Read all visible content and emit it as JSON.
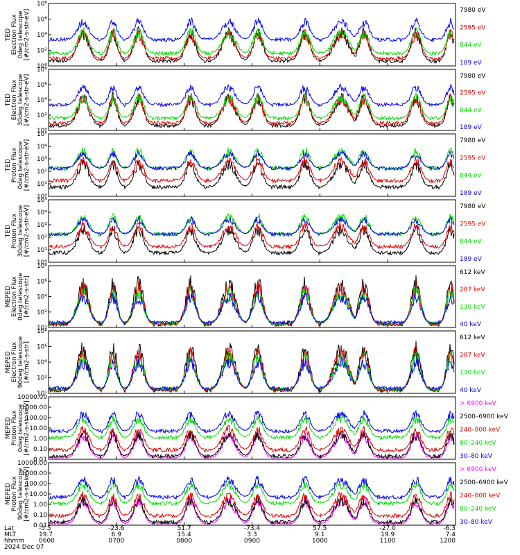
{
  "series_colors": {
    "black": "#000000",
    "red": "#e00000",
    "green": "#00dd00",
    "blue": "#0000ee",
    "magenta": "#ff00ff"
  },
  "bottom_axis": {
    "row_labels": [
      "Lat",
      "MLT",
      "hhmm",
      "2024 Dec 07"
    ],
    "ticks": [
      {
        "lat": "-5.5",
        "mlt": "19.7",
        "hhmm": "0600"
      },
      {
        "lat": "-23.6",
        "mlt": "6.9",
        "hhmm": "0700"
      },
      {
        "lat": "51.7",
        "mlt": "15.4",
        "hhmm": "0800"
      },
      {
        "lat": "-73.4",
        "mlt": "3.3",
        "hhmm": "0900"
      },
      {
        "lat": "57.5",
        "mlt": "9.1",
        "hhmm": "1000"
      },
      {
        "lat": "-27.0",
        "mlt": "19.9",
        "hhmm": "1100"
      },
      {
        "lat": "-6.3",
        "mlt": "7.4",
        "hhmm": "1200"
      }
    ]
  },
  "chart_data": [
    {
      "type": "line",
      "ylabel": [
        "TED",
        "Electron Flux",
        "0deg telescope",
        "[#/cm2-s-str-eV]"
      ],
      "ylog": true,
      "ytick_labels": [
        "10⁰",
        "10²",
        "10⁴",
        "10⁶",
        "10⁸"
      ],
      "ylim_exp": [
        0,
        8
      ],
      "legend": [
        {
          "label": "7980 eV",
          "color": "black"
        },
        {
          "label": "2595 eV",
          "color": "red"
        },
        {
          "label": "844 eV",
          "color": "green"
        },
        {
          "label": "189 eV",
          "color": "blue"
        }
      ]
    },
    {
      "type": "line",
      "ylabel": [
        "TED",
        "Electron Flux",
        "30deg telescope",
        "[#/cm2-s-str-eV]"
      ],
      "ylog": true,
      "ytick_labels": [
        "10⁰",
        "10²",
        "10⁴",
        "10⁶",
        "10⁸"
      ],
      "ylim_exp": [
        0,
        8
      ],
      "legend": [
        {
          "label": "7980 eV",
          "color": "black"
        },
        {
          "label": "2595 eV",
          "color": "red"
        },
        {
          "label": "844 eV",
          "color": "green"
        },
        {
          "label": "189 eV",
          "color": "blue"
        }
      ]
    },
    {
      "type": "line",
      "ylabel": [
        "TED",
        "Proton Flux",
        "0deg telescope",
        "[#/cm2-s-str-eV]"
      ],
      "ylog": true,
      "ytick_labels": [
        "10⁰",
        "10¹",
        "10²",
        "10³",
        "10⁴",
        "10⁵"
      ],
      "ylim_exp": [
        0,
        5
      ],
      "legend": [
        {
          "label": "7980 eV",
          "color": "black"
        },
        {
          "label": "2595 eV",
          "color": "red"
        },
        {
          "label": "844 eV",
          "color": "green"
        },
        {
          "label": "189 eV",
          "color": "blue"
        }
      ]
    },
    {
      "type": "line",
      "ylabel": [
        "TED",
        "Proton Flux",
        "30deg telescope",
        "[#/cm2-s-str-eV]"
      ],
      "ylog": true,
      "ytick_labels": [
        "10⁰",
        "10¹",
        "10²",
        "10³",
        "10⁴",
        "10⁵"
      ],
      "ylim_exp": [
        0,
        5
      ],
      "legend": [
        {
          "label": "7980 eV",
          "color": "black"
        },
        {
          "label": "2595 eV",
          "color": "red"
        },
        {
          "label": "844 eV",
          "color": "green"
        },
        {
          "label": "189 eV",
          "color": "blue"
        }
      ]
    },
    {
      "type": "line",
      "ylabel": [
        "MEPED",
        "Electron Flux",
        "0deg telescope",
        "[#/cm2-s-str]"
      ],
      "ylog": true,
      "ytick_labels": [
        "10¹",
        "10²",
        "10⁴",
        "10⁶",
        "10⁸"
      ],
      "ylim_exp": [
        1,
        8
      ],
      "legend": [
        {
          "label": "612 keV",
          "color": "black"
        },
        {
          "label": "287 keV",
          "color": "red"
        },
        {
          "label": "130 keV",
          "color": "green"
        },
        {
          "label": "40 keV",
          "color": "blue"
        }
      ]
    },
    {
      "type": "line",
      "ylabel": [
        "MEPED",
        "Electron Flux",
        "90deg telescope",
        "[#/cm2-s-str]"
      ],
      "ylog": true,
      "ytick_labels": [
        "10¹",
        "10²",
        "10⁴",
        "10⁶",
        "10⁸"
      ],
      "ylim_exp": [
        1,
        8
      ],
      "legend": [
        {
          "label": "612 keV",
          "color": "black"
        },
        {
          "label": "287 keV",
          "color": "red"
        },
        {
          "label": "130 keV",
          "color": "green"
        },
        {
          "label": "40 keV",
          "color": "blue"
        }
      ]
    },
    {
      "type": "line",
      "ylabel": [
        "MEPED",
        "Proton Flux",
        "0deg telescope",
        "[#/cm2-s-str-keV]"
      ],
      "ylog": true,
      "ytick_labels": [
        "0.01",
        "0.10",
        "1.00",
        "10.00",
        "100.00",
        "1000.00",
        "10000.00"
      ],
      "ylim_exp": [
        -2,
        4
      ],
      "legend": [
        {
          "label": "> 6900 keV",
          "color": "magenta"
        },
        {
          "label": "2500–6900 keV",
          "color": "black"
        },
        {
          "label": "240–800 keV",
          "color": "red"
        },
        {
          "label": "80–240 keV",
          "color": "green"
        },
        {
          "label": "30–80 keV",
          "color": "blue"
        }
      ]
    },
    {
      "type": "line",
      "ylabel": [
        "MEPED",
        "Proton Flux",
        "90deg telescope",
        "[#/cm2-s-str-keV]"
      ],
      "ylog": true,
      "ytick_labels": [
        "0.01",
        "0.10",
        "1.00",
        "10.00",
        "100.00",
        "1000.00",
        "10000.00"
      ],
      "ylim_exp": [
        -2,
        4
      ],
      "legend": [
        {
          "label": "> 6900 keV",
          "color": "magenta"
        },
        {
          "label": "2500–6900 keV",
          "color": "black"
        },
        {
          "label": "240–800 keV",
          "color": "red"
        },
        {
          "label": "80–240 keV",
          "color": "green"
        },
        {
          "label": "30–80 keV",
          "color": "blue"
        }
      ]
    }
  ]
}
